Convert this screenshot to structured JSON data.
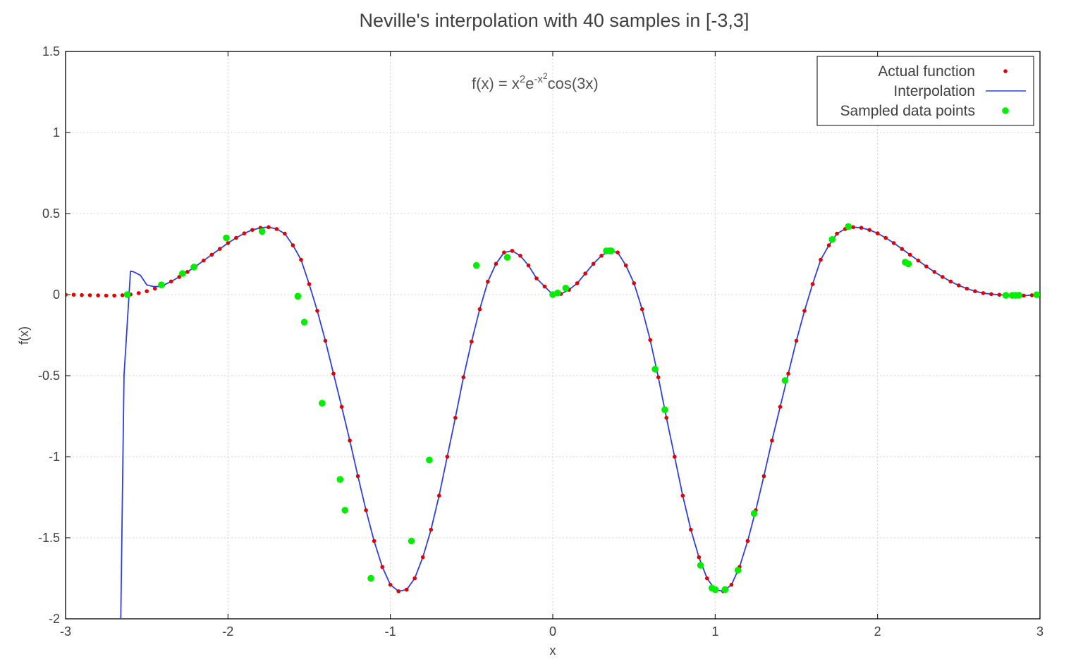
{
  "chart_data": {
    "type": "line",
    "title": "Neville's interpolation with 40 samples in [-3,3]",
    "xlabel": "x",
    "ylabel": "f(x)",
    "xlim": [
      -3,
      3
    ],
    "ylim": [
      -2,
      1.5
    ],
    "xticks": [
      "-3",
      "-2",
      "-1",
      "0",
      "1",
      "2",
      "3"
    ],
    "yticks": [
      "1.5",
      "1",
      "0.5",
      "0",
      "-0.5",
      "-1",
      "-1.5",
      "-2"
    ],
    "grid": true,
    "legend_position": "top-right",
    "annotation": {
      "base": "f(x) = x",
      "sup1": "2",
      "mid": "e",
      "sup2": "-x",
      "sup3": "2",
      "tail": "cos(3x)"
    },
    "series": [
      {
        "name": "Actual function",
        "style": "dots",
        "color": "#e00000",
        "x": [
          -3.0,
          -2.95,
          -2.9,
          -2.85,
          -2.8,
          -2.75,
          -2.7,
          -2.65,
          -2.6,
          -2.55,
          -2.5,
          -2.45,
          -2.4,
          -2.35,
          -2.3,
          -2.25,
          -2.2,
          -2.15,
          -2.1,
          -2.05,
          -2.0,
          -1.95,
          -1.9,
          -1.85,
          -1.8,
          -1.75,
          -1.7,
          -1.65,
          -1.6,
          -1.55,
          -1.5,
          -1.45,
          -1.4,
          -1.35,
          -1.3,
          -1.25,
          -1.2,
          -1.15,
          -1.1,
          -1.05,
          -1.0,
          -0.95,
          -0.9,
          -0.85,
          -0.8,
          -0.75,
          -0.7,
          -0.65,
          -0.6,
          -0.55,
          -0.5,
          -0.45,
          -0.4,
          -0.35,
          -0.3,
          -0.25,
          -0.2,
          -0.15,
          -0.1,
          -0.05,
          0.0,
          0.05,
          0.1,
          0.15,
          0.2,
          0.25,
          0.3,
          0.35,
          0.4,
          0.45,
          0.5,
          0.55,
          0.6,
          0.65,
          0.7,
          0.75,
          0.8,
          0.85,
          0.9,
          0.95,
          1.0,
          1.05,
          1.1,
          1.15,
          1.2,
          1.25,
          1.3,
          1.35,
          1.4,
          1.45,
          1.5,
          1.55,
          1.6,
          1.65,
          1.7,
          1.75,
          1.8,
          1.85,
          1.9,
          1.95,
          2.0,
          2.05,
          2.1,
          2.15,
          2.2,
          2.25,
          2.3,
          2.35,
          2.4,
          2.45,
          2.5,
          2.55,
          2.6,
          2.65,
          2.7,
          2.75,
          2.8,
          2.85,
          2.9,
          2.95,
          3.0
        ],
        "y": [
          -0.001,
          -0.001,
          -0.003,
          -0.004,
          -0.005,
          -0.006,
          -0.006,
          -0.004,
          0.001,
          0.009,
          0.021,
          0.037,
          0.057,
          0.081,
          0.109,
          0.14,
          0.174,
          0.21,
          0.246,
          0.282,
          0.318,
          0.35,
          0.378,
          0.399,
          0.412,
          0.416,
          0.405,
          0.376,
          0.304,
          0.215,
          0.065,
          -0.1,
          -0.285,
          -0.488,
          -0.692,
          -0.9,
          -1.12,
          -1.33,
          -1.52,
          -1.68,
          -1.79,
          -1.83,
          -1.82,
          -1.75,
          -1.62,
          -1.45,
          -1.24,
          -1.0,
          -0.76,
          -0.51,
          -0.29,
          -0.09,
          0.08,
          0.19,
          0.26,
          0.27,
          0.24,
          0.18,
          0.1,
          0.05,
          0.0,
          0.004,
          0.03,
          0.07,
          0.13,
          0.19,
          0.24,
          0.27,
          0.26,
          0.18,
          0.07,
          -0.09,
          -0.28,
          -0.51,
          -0.76,
          -1.0,
          -1.24,
          -1.45,
          -1.62,
          -1.75,
          -1.82,
          -1.83,
          -1.79,
          -1.68,
          -1.52,
          -1.33,
          -1.12,
          -0.9,
          -0.692,
          -0.488,
          -0.285,
          -0.1,
          0.065,
          0.215,
          0.304,
          0.376,
          0.405,
          0.416,
          0.412,
          0.399,
          0.378,
          0.35,
          0.318,
          0.282,
          0.246,
          0.21,
          0.174,
          0.14,
          0.109,
          0.081,
          0.057,
          0.037,
          0.021,
          0.009,
          0.003,
          -0.001,
          -0.004,
          -0.005,
          -0.006,
          -0.004,
          -0.001
        ]
      },
      {
        "name": "Interpolation",
        "style": "line",
        "color": "#2f3fe0",
        "x": [
          -2.66,
          -2.64,
          -2.6,
          -2.58,
          -2.54,
          -2.5,
          -2.46,
          -2.42,
          -2.4,
          -2.35,
          -2.3,
          -2.25,
          -2.2,
          -2.15,
          -2.1,
          -2.05,
          -2.0,
          -1.95,
          -1.9,
          -1.85,
          -1.8,
          -1.75,
          -1.7,
          -1.65,
          -1.6,
          -1.55,
          -1.5,
          -1.45,
          -1.4,
          -1.35,
          -1.3,
          -1.25,
          -1.2,
          -1.15,
          -1.1,
          -1.05,
          -1.0,
          -0.95,
          -0.9,
          -0.85,
          -0.8,
          -0.75,
          -0.7,
          -0.65,
          -0.6,
          -0.55,
          -0.5,
          -0.45,
          -0.4,
          -0.35,
          -0.3,
          -0.25,
          -0.2,
          -0.15,
          -0.1,
          -0.05,
          0.0,
          0.05,
          0.1,
          0.15,
          0.2,
          0.25,
          0.3,
          0.35,
          0.4,
          0.45,
          0.5,
          0.55,
          0.6,
          0.65,
          0.7,
          0.75,
          0.8,
          0.85,
          0.9,
          0.95,
          1.0,
          1.05,
          1.1,
          1.15,
          1.2,
          1.25,
          1.3,
          1.35,
          1.4,
          1.45,
          1.5,
          1.55,
          1.6,
          1.65,
          1.7,
          1.75,
          1.8,
          1.85,
          1.9,
          1.95,
          2.0,
          2.05,
          2.1,
          2.15,
          2.2,
          2.25,
          2.3,
          2.35,
          2.4,
          2.45,
          2.5,
          2.55,
          2.6,
          2.65,
          2.7,
          2.75,
          2.8,
          2.85,
          2.9,
          2.95,
          3.0
        ],
        "y": [
          -2.0,
          -0.5,
          0.145,
          0.14,
          0.12,
          0.06,
          0.05,
          0.05,
          0.057,
          0.081,
          0.109,
          0.14,
          0.174,
          0.21,
          0.246,
          0.282,
          0.318,
          0.35,
          0.378,
          0.399,
          0.412,
          0.416,
          0.405,
          0.376,
          0.304,
          0.215,
          0.065,
          -0.1,
          -0.285,
          -0.488,
          -0.692,
          -0.9,
          -1.12,
          -1.33,
          -1.52,
          -1.68,
          -1.79,
          -1.83,
          -1.82,
          -1.75,
          -1.62,
          -1.45,
          -1.24,
          -1.0,
          -0.76,
          -0.51,
          -0.29,
          -0.09,
          0.08,
          0.19,
          0.26,
          0.27,
          0.24,
          0.18,
          0.1,
          0.05,
          0.0,
          0.004,
          0.03,
          0.07,
          0.13,
          0.19,
          0.24,
          0.27,
          0.26,
          0.18,
          0.07,
          -0.09,
          -0.28,
          -0.51,
          -0.76,
          -1.0,
          -1.24,
          -1.45,
          -1.62,
          -1.75,
          -1.82,
          -1.83,
          -1.79,
          -1.68,
          -1.52,
          -1.33,
          -1.12,
          -0.9,
          -0.692,
          -0.488,
          -0.285,
          -0.1,
          0.065,
          0.215,
          0.304,
          0.376,
          0.405,
          0.416,
          0.412,
          0.399,
          0.378,
          0.35,
          0.318,
          0.282,
          0.246,
          0.21,
          0.174,
          0.14,
          0.109,
          0.081,
          0.057,
          0.037,
          0.021,
          0.009,
          0.003,
          -0.001,
          -0.004,
          -0.005,
          -0.006,
          -0.004,
          -0.001
        ]
      },
      {
        "name": "Sampled data points",
        "style": "dots",
        "color": "#00ee00",
        "x": [
          -2.62,
          -2.41,
          -2.28,
          -2.21,
          -2.01,
          -1.79,
          -1.57,
          -1.53,
          -1.42,
          -1.31,
          -1.28,
          -1.12,
          -0.87,
          -0.76,
          -0.47,
          -0.28,
          0.0,
          0.03,
          0.08,
          0.33,
          0.35,
          0.36,
          0.63,
          0.69,
          0.91,
          0.98,
          1.0,
          1.06,
          1.14,
          1.24,
          1.43,
          1.72,
          1.82,
          2.17,
          2.19,
          2.79,
          2.83,
          2.85,
          2.87,
          2.98
        ],
        "y": [
          0.0,
          0.06,
          0.13,
          0.17,
          0.35,
          0.39,
          -0.01,
          -0.17,
          -0.67,
          -1.14,
          -1.33,
          -1.75,
          -1.52,
          -1.02,
          0.18,
          0.23,
          0.0,
          0.01,
          0.04,
          0.27,
          0.27,
          0.27,
          -0.46,
          -0.71,
          -1.67,
          -1.81,
          -1.82,
          -1.82,
          -1.7,
          -1.35,
          -0.53,
          0.34,
          0.42,
          0.2,
          0.19,
          -0.005,
          -0.005,
          -0.005,
          -0.004,
          -0.001
        ]
      }
    ]
  }
}
